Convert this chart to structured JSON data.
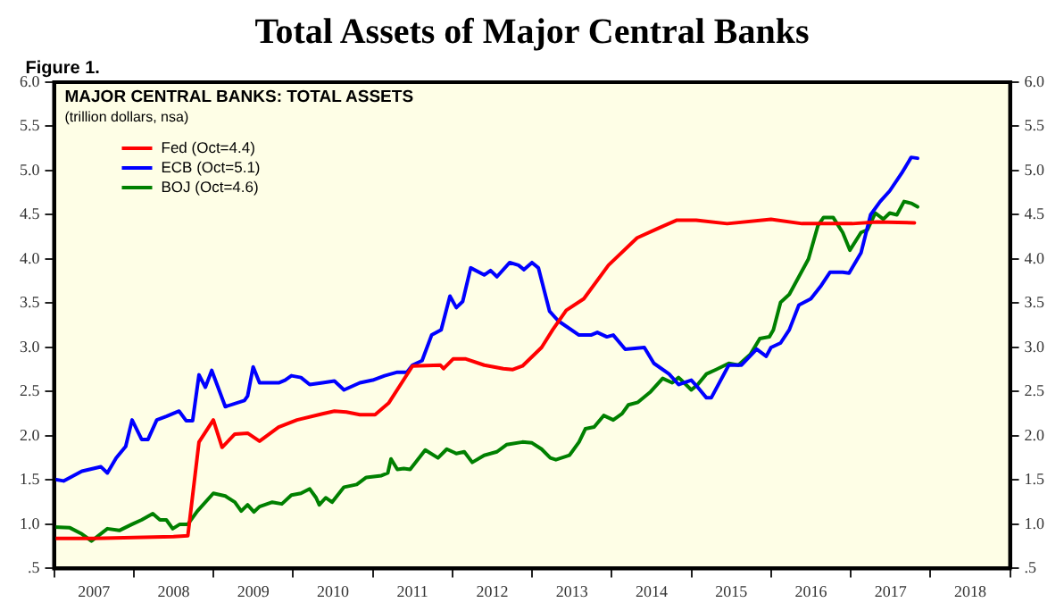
{
  "chart_data": {
    "type": "line",
    "title": "Total Assets of Major Central Banks",
    "subtitle": "MAJOR CENTRAL BANKS: TOTAL ASSETS",
    "ylabel": "(trillion dollars, nsa)",
    "annotations": [
      "Figure 1."
    ],
    "legend": "left",
    "grid": false,
    "line_style": "solid",
    "xlim": [
      2007,
      2019
    ],
    "xticks": [
      {
        "value": 2007,
        "label": null
      },
      {
        "value": 2007.5,
        "label": "2007"
      },
      {
        "value": 2008,
        "label": null
      },
      {
        "value": 2008.5,
        "label": "2008"
      },
      {
        "value": 2009,
        "label": null
      },
      {
        "value": 2009.5,
        "label": "2009"
      },
      {
        "value": 2010,
        "label": null
      },
      {
        "value": 2010.5,
        "label": "2010"
      },
      {
        "value": 2011,
        "label": null
      },
      {
        "value": 2011.5,
        "label": "2011"
      },
      {
        "value": 2012,
        "label": null
      },
      {
        "value": 2012.5,
        "label": "2012"
      },
      {
        "value": 2013,
        "label": null
      },
      {
        "value": 2013.5,
        "label": "2013"
      },
      {
        "value": 2014,
        "label": null
      },
      {
        "value": 2014.5,
        "label": "2014"
      },
      {
        "value": 2015,
        "label": null
      },
      {
        "value": 2015.5,
        "label": "2015"
      },
      {
        "value": 2016,
        "label": null
      },
      {
        "value": 2016.5,
        "label": "2016"
      },
      {
        "value": 2017,
        "label": null
      },
      {
        "value": 2017.5,
        "label": "2017"
      },
      {
        "value": 2018,
        "label": null
      },
      {
        "value": 2018.5,
        "label": "2018"
      },
      {
        "value": 2019,
        "label": null
      }
    ],
    "ylim": [
      0.5,
      6
    ],
    "yticks": [
      {
        "value": 0.5,
        "label": ".5"
      },
      {
        "value": 1,
        "label": "1.0"
      },
      {
        "value": 1.5,
        "label": "1.5"
      },
      {
        "value": 2,
        "label": "2.0"
      },
      {
        "value": 2.5,
        "label": "2.5"
      },
      {
        "value": 3,
        "label": "3.0"
      },
      {
        "value": 3.5,
        "label": "3.5"
      },
      {
        "value": 4,
        "label": "4.0"
      },
      {
        "value": 4.5,
        "label": "4.5"
      },
      {
        "value": 5,
        "label": "5.0"
      },
      {
        "value": 5.5,
        "label": "5.5"
      },
      {
        "value": 6,
        "label": "6.0"
      }
    ],
    "y2lim": [
      0.5,
      6
    ],
    "y2ticks": [
      {
        "value": 0.5,
        "label": ".5"
      },
      {
        "value": 1,
        "label": "1.0"
      },
      {
        "value": 1.5,
        "label": "1.5"
      },
      {
        "value": 2,
        "label": "2.0"
      },
      {
        "value": 2.5,
        "label": "2.5"
      },
      {
        "value": 3,
        "label": "3.0"
      },
      {
        "value": 3.5,
        "label": "3.5"
      },
      {
        "value": 4,
        "label": "4.0"
      },
      {
        "value": 4.5,
        "label": "4.5"
      },
      {
        "value": 5,
        "label": "5.0"
      },
      {
        "value": 5.5,
        "label": "5.5"
      },
      {
        "value": 6,
        "label": "6.0"
      }
    ],
    "series": [
      {
        "name": "Fed (Oct=4.4)",
        "color": "#ff0000",
        "x": [
          2007,
          2007.5,
          2008,
          2008.5,
          2008.68,
          2008.82,
          2009,
          2009.11,
          2009.27,
          2009.43,
          2009.58,
          2009.82,
          2010.05,
          2010.37,
          2010.52,
          2010.67,
          2010.84,
          2011.03,
          2011.2,
          2011.5,
          2011.85,
          2011.89,
          2012.01,
          2012.17,
          2012.4,
          2012.64,
          2012.76,
          2012.88,
          2013.12,
          2013.26,
          2013.43,
          2013.65,
          2013.96,
          2014.32,
          2014.59,
          2014.82,
          2015.06,
          2015.45,
          2016,
          2016.39,
          2017.02,
          2017.33,
          2017.8
        ],
        "values": [
          0.84,
          0.84,
          0.85,
          0.86,
          0.87,
          1.93,
          2.18,
          1.87,
          2.02,
          2.03,
          1.94,
          2.1,
          2.18,
          2.25,
          2.28,
          2.27,
          2.24,
          2.24,
          2.37,
          2.79,
          2.8,
          2.76,
          2.87,
          2.87,
          2.8,
          2.76,
          2.75,
          2.79,
          3,
          3.2,
          3.42,
          3.55,
          3.93,
          4.24,
          4.35,
          4.44,
          4.44,
          4.4,
          4.45,
          4.4,
          4.4,
          4.42,
          4.41
        ]
      },
      {
        "name": "ECB (Oct=5.1)",
        "color": "#0000ff",
        "x": [
          2007,
          2007.12,
          2007.35,
          2007.59,
          2007.67,
          2007.78,
          2007.9,
          2007.98,
          2008.1,
          2008.18,
          2008.29,
          2008.41,
          2008.57,
          2008.66,
          2008.74,
          2008.82,
          2008.9,
          2008.98,
          2009.15,
          2009.39,
          2009.43,
          2009.5,
          2009.58,
          2009.82,
          2009.9,
          2009.98,
          2010.1,
          2010.21,
          2010.37,
          2010.52,
          2010.64,
          2010.84,
          2011,
          2011.15,
          2011.31,
          2011.43,
          2011.5,
          2011.62,
          2011.74,
          2011.86,
          2011.97,
          2012.05,
          2012.13,
          2012.23,
          2012.4,
          2012.48,
          2012.56,
          2012.72,
          2012.83,
          2012.9,
          2013,
          2013.08,
          2013.22,
          2013.33,
          2013.59,
          2013.74,
          2013.82,
          2013.94,
          2014.02,
          2014.17,
          2014.41,
          2014.53,
          2014.72,
          2014.84,
          2015,
          2015.08,
          2015.19,
          2015.25,
          2015.47,
          2015.63,
          2015.82,
          2015.94,
          2016,
          2016.12,
          2016.23,
          2016.35,
          2016.5,
          2016.63,
          2016.74,
          2016.9,
          2016.98,
          2017.13,
          2017.25,
          2017.37,
          2017.49,
          2017.64,
          2017.76,
          2017.84
        ],
        "values": [
          1.51,
          1.49,
          1.6,
          1.65,
          1.58,
          1.75,
          1.88,
          2.18,
          1.96,
          1.96,
          2.18,
          2.22,
          2.28,
          2.17,
          2.17,
          2.69,
          2.55,
          2.74,
          2.33,
          2.4,
          2.45,
          2.78,
          2.6,
          2.6,
          2.63,
          2.68,
          2.66,
          2.58,
          2.6,
          2.62,
          2.52,
          2.6,
          2.63,
          2.68,
          2.72,
          2.72,
          2.8,
          2.85,
          3.14,
          3.2,
          3.58,
          3.45,
          3.52,
          3.9,
          3.82,
          3.87,
          3.8,
          3.96,
          3.93,
          3.88,
          3.96,
          3.9,
          3.41,
          3.3,
          3.14,
          3.14,
          3.17,
          3.12,
          3.14,
          2.98,
          3,
          2.82,
          2.7,
          2.58,
          2.63,
          2.55,
          2.43,
          2.43,
          2.8,
          2.8,
          2.98,
          2.9,
          3,
          3.05,
          3.2,
          3.48,
          3.55,
          3.7,
          3.85,
          3.85,
          3.84,
          4.07,
          4.5,
          4.65,
          4.77,
          4.97,
          5.15,
          5.14
        ]
      },
      {
        "name": "BOJ (Oct=4.6)",
        "color": "#008000",
        "x": [
          2007,
          2007.2,
          2007.35,
          2007.47,
          2007.67,
          2007.82,
          2007.98,
          2008.1,
          2008.24,
          2008.33,
          2008.41,
          2008.49,
          2008.58,
          2008.68,
          2008.8,
          2009,
          2009.15,
          2009.27,
          2009.35,
          2009.43,
          2009.51,
          2009.58,
          2009.74,
          2009.86,
          2009.98,
          2010.1,
          2010.21,
          2010.29,
          2010.33,
          2010.41,
          2010.49,
          2010.64,
          2010.8,
          2010.92,
          2011.11,
          2011.19,
          2011.23,
          2011.31,
          2011.39,
          2011.47,
          2011.66,
          2011.82,
          2011.93,
          2012.05,
          2012.15,
          2012.25,
          2012.4,
          2012.56,
          2012.68,
          2012.88,
          2013,
          2013.12,
          2013.23,
          2013.3,
          2013.47,
          2013.59,
          2013.67,
          2013.78,
          2013.9,
          2014.02,
          2014.13,
          2014.21,
          2014.33,
          2014.49,
          2014.64,
          2014.76,
          2014.84,
          2015,
          2015.08,
          2015.19,
          2015.31,
          2015.47,
          2015.59,
          2015.74,
          2015.86,
          2015.98,
          2016.03,
          2016.12,
          2016.23,
          2016.35,
          2016.47,
          2016.59,
          2016.66,
          2016.78,
          2016.9,
          2016.99,
          2017.13,
          2017.21,
          2017.31,
          2017.41,
          2017.49,
          2017.58,
          2017.67,
          2017.76,
          2017.84
        ],
        "values": [
          0.97,
          0.96,
          0.89,
          0.81,
          0.95,
          0.93,
          1,
          1.05,
          1.12,
          1.05,
          1.05,
          0.95,
          1,
          1,
          1.15,
          1.35,
          1.32,
          1.25,
          1.15,
          1.22,
          1.14,
          1.2,
          1.25,
          1.23,
          1.33,
          1.35,
          1.4,
          1.3,
          1.22,
          1.3,
          1.25,
          1.42,
          1.45,
          1.53,
          1.55,
          1.58,
          1.74,
          1.62,
          1.63,
          1.62,
          1.84,
          1.75,
          1.85,
          1.8,
          1.82,
          1.7,
          1.78,
          1.82,
          1.9,
          1.93,
          1.92,
          1.85,
          1.75,
          1.73,
          1.78,
          1.93,
          2.08,
          2.1,
          2.23,
          2.18,
          2.25,
          2.35,
          2.38,
          2.5,
          2.65,
          2.6,
          2.66,
          2.52,
          2.58,
          2.7,
          2.75,
          2.82,
          2.8,
          2.92,
          3.1,
          3.12,
          3.2,
          3.51,
          3.6,
          3.8,
          4,
          4.38,
          4.47,
          4.47,
          4.3,
          4.1,
          4.3,
          4.33,
          4.52,
          4.45,
          4.52,
          4.5,
          4.65,
          4.63,
          4.59
        ]
      }
    ]
  }
}
